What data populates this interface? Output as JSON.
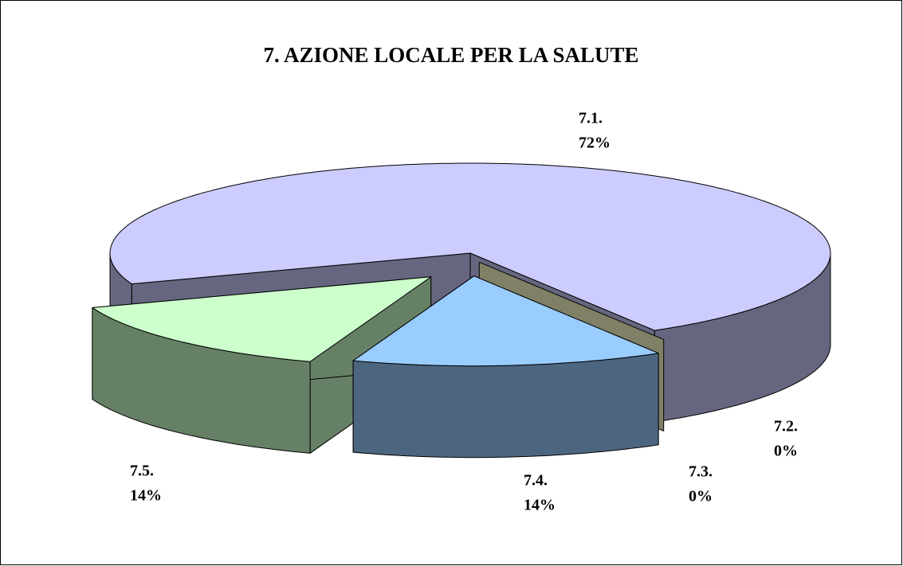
{
  "chart_data": {
    "type": "pie3d",
    "title": "7. AZIONE LOCALE PER LA SALUTE",
    "categories": [
      "7.1.",
      "7.2.",
      "7.3.",
      "7.4.",
      "7.5."
    ],
    "values": [
      72,
      0,
      0,
      14,
      14
    ],
    "value_labels": [
      "72%",
      "0%",
      "0%",
      "14%",
      "14%"
    ],
    "colors": [
      "#ccccff",
      "#993366",
      "#ffffcc",
      "#99ccff",
      "#ccffcc"
    ]
  }
}
